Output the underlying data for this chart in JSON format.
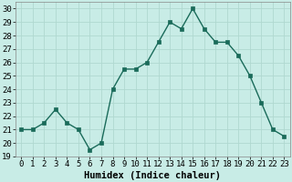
{
  "x": [
    0,
    1,
    2,
    3,
    4,
    5,
    6,
    7,
    8,
    9,
    10,
    11,
    12,
    13,
    14,
    15,
    16,
    17,
    18,
    19,
    20,
    21,
    22,
    23
  ],
  "y": [
    21,
    21,
    21.5,
    22.5,
    21.5,
    21,
    19.5,
    20,
    24,
    25.5,
    25.5,
    26,
    27.5,
    29,
    28.5,
    30,
    28.5,
    27.5,
    27.5,
    26.5,
    25,
    23,
    21,
    20.5
  ],
  "line_color": "#1a6b5a",
  "marker": "s",
  "markersize": 2.2,
  "linewidth": 1.0,
  "xlabel": "Humidex (Indice chaleur)",
  "xlim": [
    -0.5,
    23.5
  ],
  "ylim": [
    19,
    30.5
  ],
  "yticks": [
    19,
    20,
    21,
    22,
    23,
    24,
    25,
    26,
    27,
    28,
    29,
    30
  ],
  "xtick_labels": [
    "0",
    "1",
    "2",
    "3",
    "4",
    "5",
    "6",
    "7",
    "8",
    "9",
    "10",
    "11",
    "12",
    "13",
    "14",
    "15",
    "16",
    "17",
    "18",
    "19",
    "20",
    "21",
    "22",
    "23"
  ],
  "bg_color": "#c8ece6",
  "grid_color": "#b0d8d0",
  "xlabel_fontsize": 7.5,
  "tick_fontsize": 6.5
}
